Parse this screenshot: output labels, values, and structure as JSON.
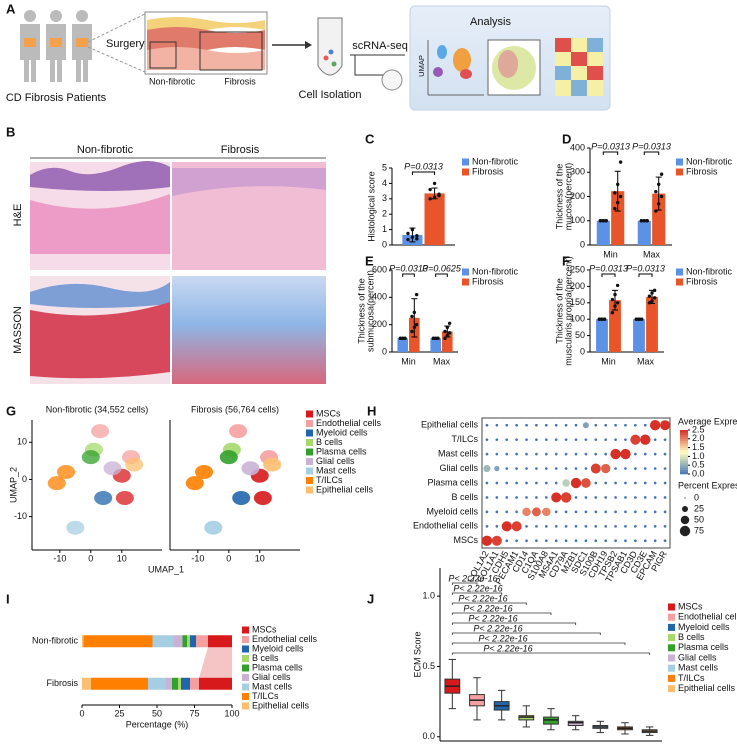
{
  "panel_a": {
    "label": "A",
    "patients": "CD Fibrosis Patients",
    "surgery": "Surgery",
    "non_fibrotic": "Non-fibrotic",
    "fibrosis": "Fibrosis",
    "scrna": "scRNA-seq",
    "isolation": "Cell Isolation",
    "analysis": "Analysis",
    "umap": "UMAP"
  },
  "panel_b": {
    "label": "B",
    "columns": [
      "Non-fibrotic",
      "Fibrosis"
    ],
    "rows": [
      "H&E",
      "MASSON"
    ]
  },
  "chart_data": [
    {
      "type": "bar",
      "label": "C",
      "ylabel": "Histological score",
      "categories": [
        null
      ],
      "series": [
        {
          "name": "Non-fibrotic",
          "color": "#5b92e5",
          "values": [
            0.65
          ],
          "errors": [
            0.45
          ],
          "points": [
            [
              0.35,
              0.5,
              0.6,
              0.75,
              1.0,
              0.4
            ]
          ]
        },
        {
          "name": "Fibrosis",
          "color": "#e8552a",
          "values": [
            3.35
          ],
          "errors": [
            0.35
          ],
          "points": [
            [
              3.0,
              3.1,
              3.3,
              3.6,
              4.0,
              3.2
            ]
          ]
        }
      ],
      "ylim": [
        0,
        5
      ],
      "yticks": [
        0,
        1,
        2,
        3,
        4,
        5
      ],
      "annotations": [
        "P=0.0313"
      ]
    },
    {
      "type": "bar",
      "label": "D",
      "ylabel": [
        "Thickness of the",
        "mucosa(percent)"
      ],
      "categories": [
        "Min",
        "Max"
      ],
      "series": [
        {
          "name": "Non-fibrotic",
          "color": "#5b92e5",
          "values": [
            100,
            100
          ],
          "errors": [
            0,
            0
          ],
          "points": [
            [
              100,
              100,
              100,
              100,
              100,
              100
            ],
            [
              100,
              100,
              100,
              100,
              100,
              100
            ]
          ]
        },
        {
          "name": "Fibrosis",
          "color": "#e8552a",
          "values": [
            222,
            212
          ],
          "errors": [
            82,
            68
          ],
          "points": [
            [
              150,
              175,
              200,
              215,
              250,
              342
            ],
            [
              140,
              170,
              200,
              220,
              250,
              292
            ]
          ]
        }
      ],
      "ylim": [
        0,
        400
      ],
      "yticks": [
        0,
        100,
        200,
        300,
        400
      ],
      "annotations": [
        "P=0.0313",
        "P=0.0313"
      ]
    },
    {
      "type": "bar",
      "label": "E",
      "ylabel": [
        "Thickness of the",
        "submucosa(percent)"
      ],
      "categories": [
        "Min",
        "Max"
      ],
      "series": [
        {
          "name": "Non-fibrotic",
          "color": "#5b92e5",
          "values": [
            100,
            100
          ],
          "errors": [
            0,
            0
          ],
          "points": [
            [
              100,
              100,
              100,
              100,
              100,
              100
            ],
            [
              100,
              100,
              100,
              100,
              100,
              100
            ]
          ]
        },
        {
          "name": "Fibrosis",
          "color": "#e8552a",
          "values": [
            250,
            150
          ],
          "errors": [
            140,
            40
          ],
          "points": [
            [
              150,
              180,
              200,
              260,
              290,
              420
            ],
            [
              100,
              120,
              140,
              150,
              180,
              210
            ]
          ]
        }
      ],
      "ylim": [
        0,
        600
      ],
      "yticks": [
        0,
        200,
        400,
        600
      ],
      "annotations": [
        "P=0.0313",
        "P=0.0625"
      ]
    },
    {
      "type": "bar",
      "label": "F",
      "ylabel": [
        "Thickness of the",
        "muscularis propria(percent)"
      ],
      "categories": [
        "Min",
        "Max"
      ],
      "series": [
        {
          "name": "Non-fibrotic",
          "color": "#5b92e5",
          "values": [
            100,
            100
          ],
          "errors": [
            0,
            0
          ],
          "points": [
            [
              100,
              100,
              100,
              100,
              100,
              100
            ],
            [
              100,
              100,
              100,
              100,
              100,
              100
            ]
          ]
        },
        {
          "name": "Fibrosis",
          "color": "#e8552a",
          "values": [
            158,
            168
          ],
          "errors": [
            30,
            20
          ],
          "points": [
            [
              120,
              140,
              150,
              160,
              175,
              203
            ],
            [
              150,
              155,
              165,
              170,
              180,
              188
            ]
          ]
        }
      ],
      "ylim": [
        0,
        250
      ],
      "yticks": [
        0,
        50,
        100,
        150,
        200,
        250
      ],
      "annotations": [
        "P=0.0313",
        "P=0.0313"
      ]
    },
    {
      "type": "umap",
      "label": "G",
      "titles": [
        "Non-fibrotic (34,552 cells)",
        "Fibrosis (56,764 cells)"
      ],
      "xlabel": "UMAP_1",
      "ylabel": "UMAP_2",
      "xlim": [
        -19,
        23
      ],
      "ylim": [
        -19,
        16
      ],
      "xticks": [
        -10,
        0,
        10
      ],
      "yticks": [
        -10,
        0,
        10
      ],
      "series": [
        {
          "name": "MSCs",
          "color": "#d7191c",
          "centers": [
            [
              11,
              -5
            ],
            [
              10,
              1
            ]
          ]
        },
        {
          "name": "Endothelial cells",
          "color": "#f4a0a0",
          "centers": [
            [
              3,
              13
            ],
            [
              13,
              6
            ]
          ]
        },
        {
          "name": "Myeloid cells",
          "color": "#2166ac",
          "centers": [
            [
              4,
              -5
            ]
          ]
        },
        {
          "name": "B cells",
          "color": "#a6d96a",
          "centers": [
            [
              1,
              8
            ]
          ]
        },
        {
          "name": "Plasma cells",
          "color": "#33a02c",
          "centers": [
            [
              0,
              6
            ]
          ]
        },
        {
          "name": "Glial cells",
          "color": "#cab2d6",
          "centers": [
            [
              7,
              3
            ]
          ]
        },
        {
          "name": "Mast cells",
          "color": "#a6cee3",
          "centers": [
            [
              -5,
              -13
            ]
          ]
        },
        {
          "name": "T/ILCs",
          "color": "#ff7f00",
          "centers": [
            [
              -11,
              -1
            ],
            [
              -8,
              2
            ]
          ]
        },
        {
          "name": "Epithelial cells",
          "color": "#fdbf6f",
          "centers": [
            [
              14,
              4
            ]
          ]
        }
      ]
    },
    {
      "type": "dot",
      "label": "H",
      "rows": [
        "Epithelial cells",
        "T/ILCs",
        "Mast cells",
        "Glial cells",
        "Plasma cells",
        "B cells",
        "Myeloid cells",
        "Endothelial cells",
        "MSCs"
      ],
      "categories": [
        "COL1A2",
        "COL1A1",
        "CDH5",
        "PECAM1",
        "CD14",
        "C1QA",
        "S100A8",
        "MS4A1",
        "CD79A",
        "MZB1",
        "SDC1",
        "S100B",
        "CDH19",
        "TPSB2",
        "TPSAB1",
        "CD3D",
        "CD3E",
        "EPCAM",
        "PIGR"
      ],
      "expression": [
        [
          0,
          0,
          0,
          0,
          0,
          0,
          0,
          0,
          0,
          0,
          0.4,
          0,
          0,
          0,
          0,
          0,
          0,
          2.5,
          2.5
        ],
        [
          0,
          0,
          0,
          0,
          0,
          0,
          0,
          0,
          0,
          0,
          0,
          0,
          0,
          0,
          0,
          2.4,
          2.5,
          0,
          0
        ],
        [
          0,
          0,
          0,
          0,
          0,
          0,
          0,
          0,
          0,
          0,
          0,
          0,
          0,
          2.5,
          2.5,
          0,
          0,
          0,
          0
        ],
        [
          0.6,
          0.4,
          0,
          0,
          0,
          0,
          0,
          0,
          0,
          0,
          0,
          2.4,
          2.2,
          0,
          0,
          0,
          0,
          0,
          0
        ],
        [
          0,
          0,
          0,
          0,
          0,
          0,
          0,
          0,
          0.8,
          2.5,
          2.3,
          0,
          0,
          0,
          0,
          0,
          0,
          0,
          0
        ],
        [
          0,
          0,
          0,
          0,
          0,
          0,
          0,
          2.5,
          2.4,
          0,
          0,
          0,
          0,
          0,
          0,
          0,
          0,
          0,
          0
        ],
        [
          0,
          0,
          0,
          0,
          2.0,
          2.2,
          2.0,
          0,
          0,
          0,
          0,
          0,
          0,
          0,
          0,
          0,
          0,
          0,
          0
        ],
        [
          0,
          0,
          2.5,
          2.4,
          0,
          0,
          0,
          0,
          0,
          0,
          0,
          0,
          0,
          0,
          0,
          0,
          0,
          0,
          0
        ],
        [
          2.5,
          2.4,
          0,
          0,
          0,
          0,
          0,
          0,
          0,
          0,
          0,
          0,
          0,
          0,
          0,
          0,
          0,
          0,
          0
        ]
      ],
      "percent": [
        [
          5,
          5,
          5,
          5,
          5,
          5,
          5,
          5,
          5,
          5,
          25,
          5,
          5,
          5,
          5,
          5,
          5,
          75,
          70
        ],
        [
          5,
          5,
          5,
          5,
          5,
          5,
          5,
          5,
          5,
          5,
          5,
          5,
          5,
          5,
          5,
          70,
          75,
          5,
          5
        ],
        [
          5,
          5,
          5,
          5,
          5,
          5,
          5,
          5,
          5,
          5,
          5,
          5,
          5,
          75,
          75,
          5,
          5,
          5,
          5
        ],
        [
          35,
          20,
          5,
          5,
          5,
          5,
          5,
          5,
          5,
          5,
          5,
          70,
          60,
          5,
          5,
          5,
          5,
          5,
          5
        ],
        [
          5,
          5,
          5,
          5,
          5,
          5,
          5,
          5,
          40,
          75,
          65,
          5,
          5,
          5,
          5,
          5,
          5,
          5,
          5
        ],
        [
          5,
          5,
          5,
          5,
          5,
          5,
          5,
          70,
          75,
          5,
          5,
          5,
          5,
          5,
          5,
          5,
          5,
          5,
          5
        ],
        [
          5,
          5,
          5,
          5,
          50,
          55,
          50,
          5,
          5,
          5,
          5,
          5,
          5,
          5,
          5,
          5,
          5,
          5,
          5
        ],
        [
          5,
          5,
          70,
          70,
          5,
          5,
          5,
          5,
          5,
          5,
          5,
          5,
          5,
          5,
          5,
          5,
          5,
          5,
          5
        ],
        [
          75,
          70,
          5,
          5,
          5,
          5,
          5,
          5,
          5,
          5,
          5,
          5,
          5,
          5,
          5,
          5,
          5,
          5,
          5
        ]
      ],
      "clim": [
        0,
        2.5
      ],
      "color_title": "Average Expression",
      "color_ticks": [
        {
          "value": 0,
          "label": "0.0"
        },
        {
          "value": 0.5,
          "label": "0.5"
        },
        {
          "value": 1,
          "label": "1.0"
        },
        {
          "value": 1.5,
          "label": "1.5"
        },
        {
          "value": 2,
          "label": "2.0"
        },
        2.5
      ],
      "size_title": "Percent Expressed",
      "size_ticks": [
        0,
        25,
        50,
        75
      ]
    },
    {
      "type": "stacked_bar",
      "label": "I",
      "xlabel": "Percentage (%)",
      "categories": [
        "Non-fibrotic",
        "Fibrosis"
      ],
      "series": [
        {
          "name": "MSCs",
          "color": "#d7191c",
          "values": [
            16,
            22
          ]
        },
        {
          "name": "Endothelial cells",
          "color": "#f4a0a0",
          "values": [
            8,
            6
          ]
        },
        {
          "name": "Myeloid cells",
          "color": "#2166ac",
          "values": [
            4,
            6
          ]
        },
        {
          "name": "B cells",
          "color": "#a6d96a",
          "values": [
            2,
            2
          ]
        },
        {
          "name": "Plasma cells",
          "color": "#33a02c",
          "values": [
            3,
            4
          ]
        },
        {
          "name": "Glial cells",
          "color": "#cab2d6",
          "values": [
            6,
            4
          ]
        },
        {
          "name": "Mast cells",
          "color": "#a6cee3",
          "values": [
            14,
            12
          ]
        },
        {
          "name": "T/ILCs",
          "color": "#ff7f00",
          "values": [
            46,
            38
          ]
        },
        {
          "name": "Epithelial cells",
          "color": "#fdbf6f",
          "values": [
            1,
            6
          ]
        }
      ],
      "xlim": [
        0,
        100
      ],
      "xticks": [
        0,
        25,
        50,
        75,
        100
      ]
    },
    {
      "type": "box",
      "label": "J",
      "ylabel": "ECM Score",
      "categories": [
        "MSCs",
        "Endothelial cells",
        "Myeloid cells",
        "B cells",
        "Plasma cells",
        "Glial cells",
        "Mast cells",
        "T/ILCs",
        "Epithelial cells"
      ],
      "colors": [
        "#d7191c",
        "#f4a0a0",
        "#2166ac",
        "#a6d96a",
        "#33a02c",
        "#cab2d6",
        "#a6cee3",
        "#ff7f00",
        "#fdbf6f"
      ],
      "boxes": [
        [
          0.2,
          0.31,
          0.36,
          0.41,
          0.55
        ],
        [
          0.12,
          0.22,
          0.26,
          0.3,
          0.42
        ],
        [
          0.12,
          0.19,
          0.22,
          0.25,
          0.33
        ],
        [
          0.07,
          0.12,
          0.14,
          0.15,
          0.22
        ],
        [
          0.05,
          0.09,
          0.12,
          0.14,
          0.2
        ],
        [
          0.05,
          0.08,
          0.1,
          0.11,
          0.15
        ],
        [
          0.03,
          0.06,
          0.07,
          0.08,
          0.11
        ],
        [
          0.02,
          0.05,
          0.06,
          0.07,
          0.1
        ],
        [
          0.01,
          0.03,
          0.04,
          0.05,
          0.07
        ]
      ],
      "ylim": [
        -0.03,
        1.2
      ],
      "yticks": [
        {
          "value": 0,
          "label": "0.0"
        },
        {
          "value": 0.5,
          "label": "0.5"
        },
        {
          "value": 1,
          "label": "1.0"
        }
      ],
      "comparisons": [
        "P< 2.22e-16",
        "P< 2.22e-16",
        "P< 2.22e-16",
        "P< 2.22e-16",
        "P< 2.22e-16",
        "P< 2.22e-16",
        "P< 2.22e-16",
        "P< 2.22e-16"
      ]
    }
  ]
}
